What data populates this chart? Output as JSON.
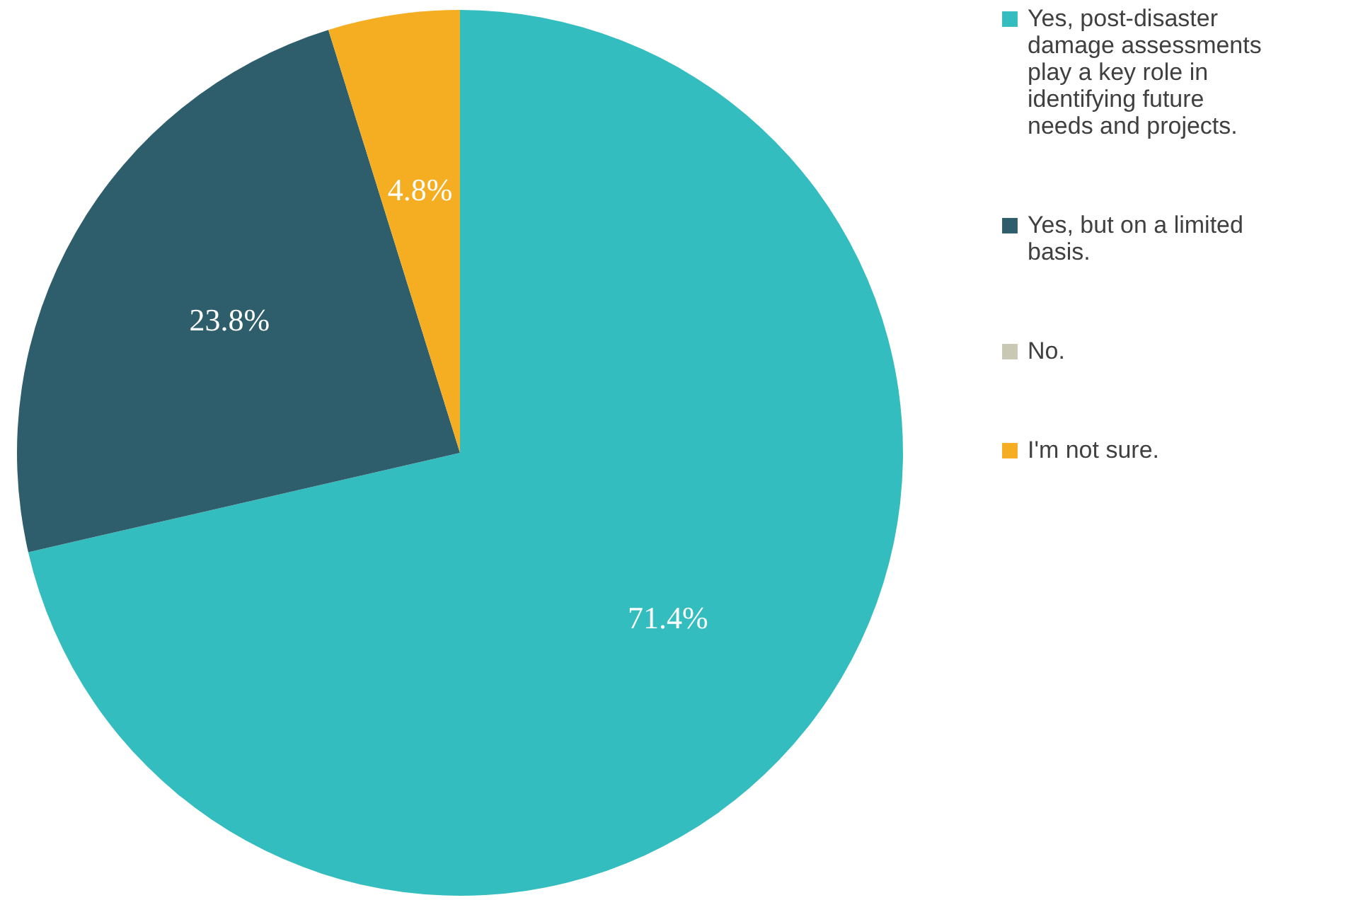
{
  "chart_data": {
    "type": "pie",
    "categories": [
      "Yes, post-disaster damage assessments play a key role in identifying future needs and projects.",
      "Yes, but on a limited basis.",
      "No.",
      "I'm not sure."
    ],
    "values": [
      71.4,
      23.8,
      0,
      4.8
    ],
    "colors": [
      "#33bdbf",
      "#2e5e6b",
      "#c8c8b4",
      "#f5ae22"
    ],
    "value_labels": [
      "71.4%",
      "23.8%",
      null,
      "4.8%"
    ],
    "legend": "right"
  }
}
